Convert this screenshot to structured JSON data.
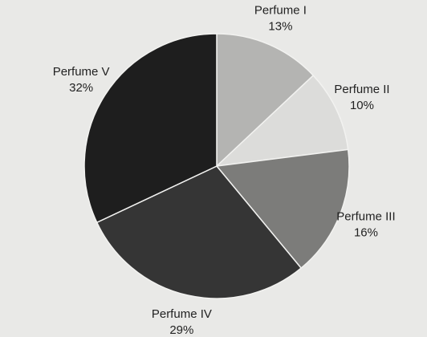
{
  "chart_data": {
    "type": "pie",
    "categories": [
      "Perfume I",
      "Perfume II",
      "Perfume III",
      "Perfume IV",
      "Perfume V"
    ],
    "values": [
      13,
      10,
      16,
      29,
      32
    ],
    "value_labels": [
      "13%",
      "10%",
      "16%",
      "29%",
      "32%"
    ],
    "colors": [
      "#b4b4b2",
      "#dcdcda",
      "#7c7c7a",
      "#353535",
      "#1e1e1e"
    ]
  }
}
